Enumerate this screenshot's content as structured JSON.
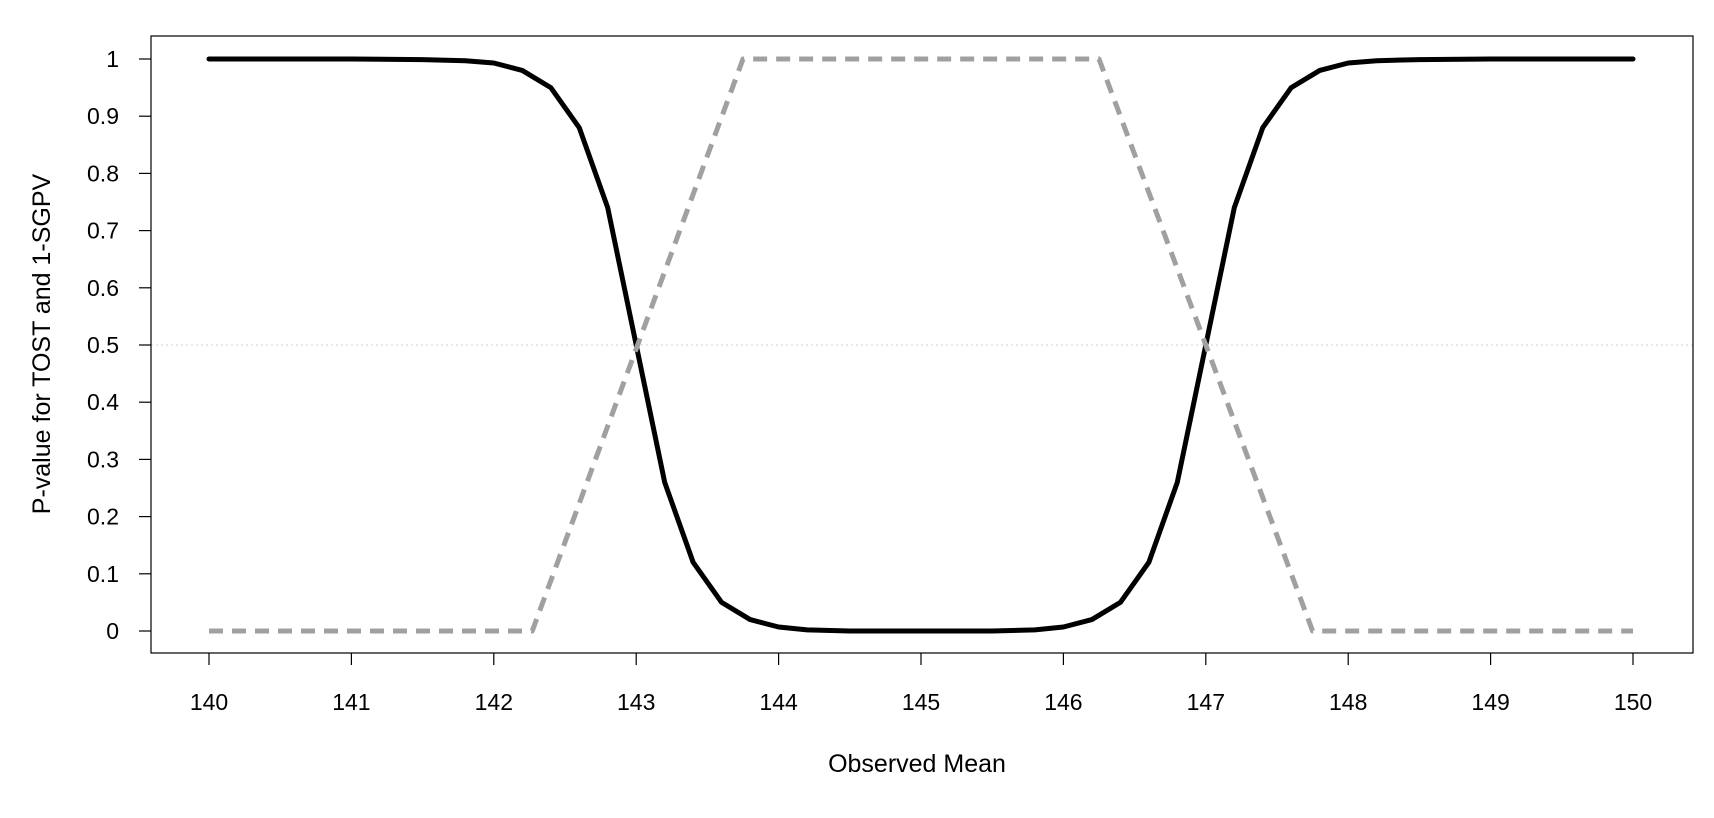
{
  "chart_data": {
    "type": "line",
    "title": "",
    "xlabel": "Observed Mean",
    "ylabel": "P-value for TOST and 1-SGPV",
    "xlim": [
      140,
      150
    ],
    "ylim": [
      0,
      1
    ],
    "x_ticks": [
      "140",
      "141",
      "142",
      "143",
      "144",
      "145",
      "146",
      "147",
      "148",
      "149",
      "150"
    ],
    "y_ticks": [
      "0",
      "0.1",
      "0.2",
      "0.3",
      "0.4",
      "0.5",
      "0.6",
      "0.7",
      "0.8",
      "0.9",
      "1"
    ],
    "reference_line": {
      "y": 0.5,
      "style": "dotted",
      "color": "#d3d3d3"
    },
    "grid": false,
    "legend": "none",
    "series": [
      {
        "style": "solid",
        "color": "#000000",
        "x": [
          140,
          141,
          141.5,
          141.8,
          142,
          142.2,
          142.4,
          142.6,
          142.8,
          143,
          143.2,
          143.4,
          143.6,
          143.8,
          144,
          144.2,
          144.5,
          145,
          145.5,
          145.8,
          146,
          146.2,
          146.4,
          146.6,
          146.8,
          147,
          147.2,
          147.4,
          147.6,
          147.8,
          148,
          148.2,
          148.5,
          149,
          150
        ],
        "y": [
          1,
          1,
          0.999,
          0.997,
          0.993,
          0.98,
          0.95,
          0.88,
          0.74,
          0.5,
          0.26,
          0.12,
          0.05,
          0.02,
          0.007,
          0.002,
          0.0,
          0.0,
          0.0,
          0.002,
          0.007,
          0.02,
          0.05,
          0.12,
          0.26,
          0.5,
          0.74,
          0.88,
          0.95,
          0.98,
          0.993,
          0.997,
          0.999,
          1,
          1
        ]
      },
      {
        "style": "dashed",
        "color": "#a0a0a0",
        "x": [
          140,
          142.27,
          143.75,
          146.25,
          147.75,
          150
        ],
        "y": [
          0,
          0,
          1,
          1,
          0,
          0
        ]
      }
    ]
  }
}
